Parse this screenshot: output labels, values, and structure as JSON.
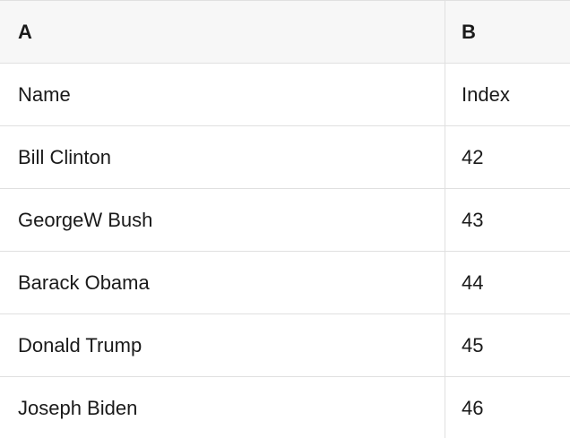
{
  "table": {
    "column_headers": [
      {
        "label": "A"
      },
      {
        "label": "B"
      }
    ],
    "rows": [
      [
        "Name",
        "Index"
      ],
      [
        "Bill Clinton",
        "42"
      ],
      [
        "GeorgeW Bush",
        "43"
      ],
      [
        "Barack Obama",
        "44"
      ],
      [
        "Donald Trump",
        "45"
      ],
      [
        "Joseph Biden",
        "46"
      ]
    ]
  },
  "colors": {
    "header_bg": "#f7f7f7",
    "grid_border": "#e0e0e0",
    "text": "#1a1a1a"
  }
}
